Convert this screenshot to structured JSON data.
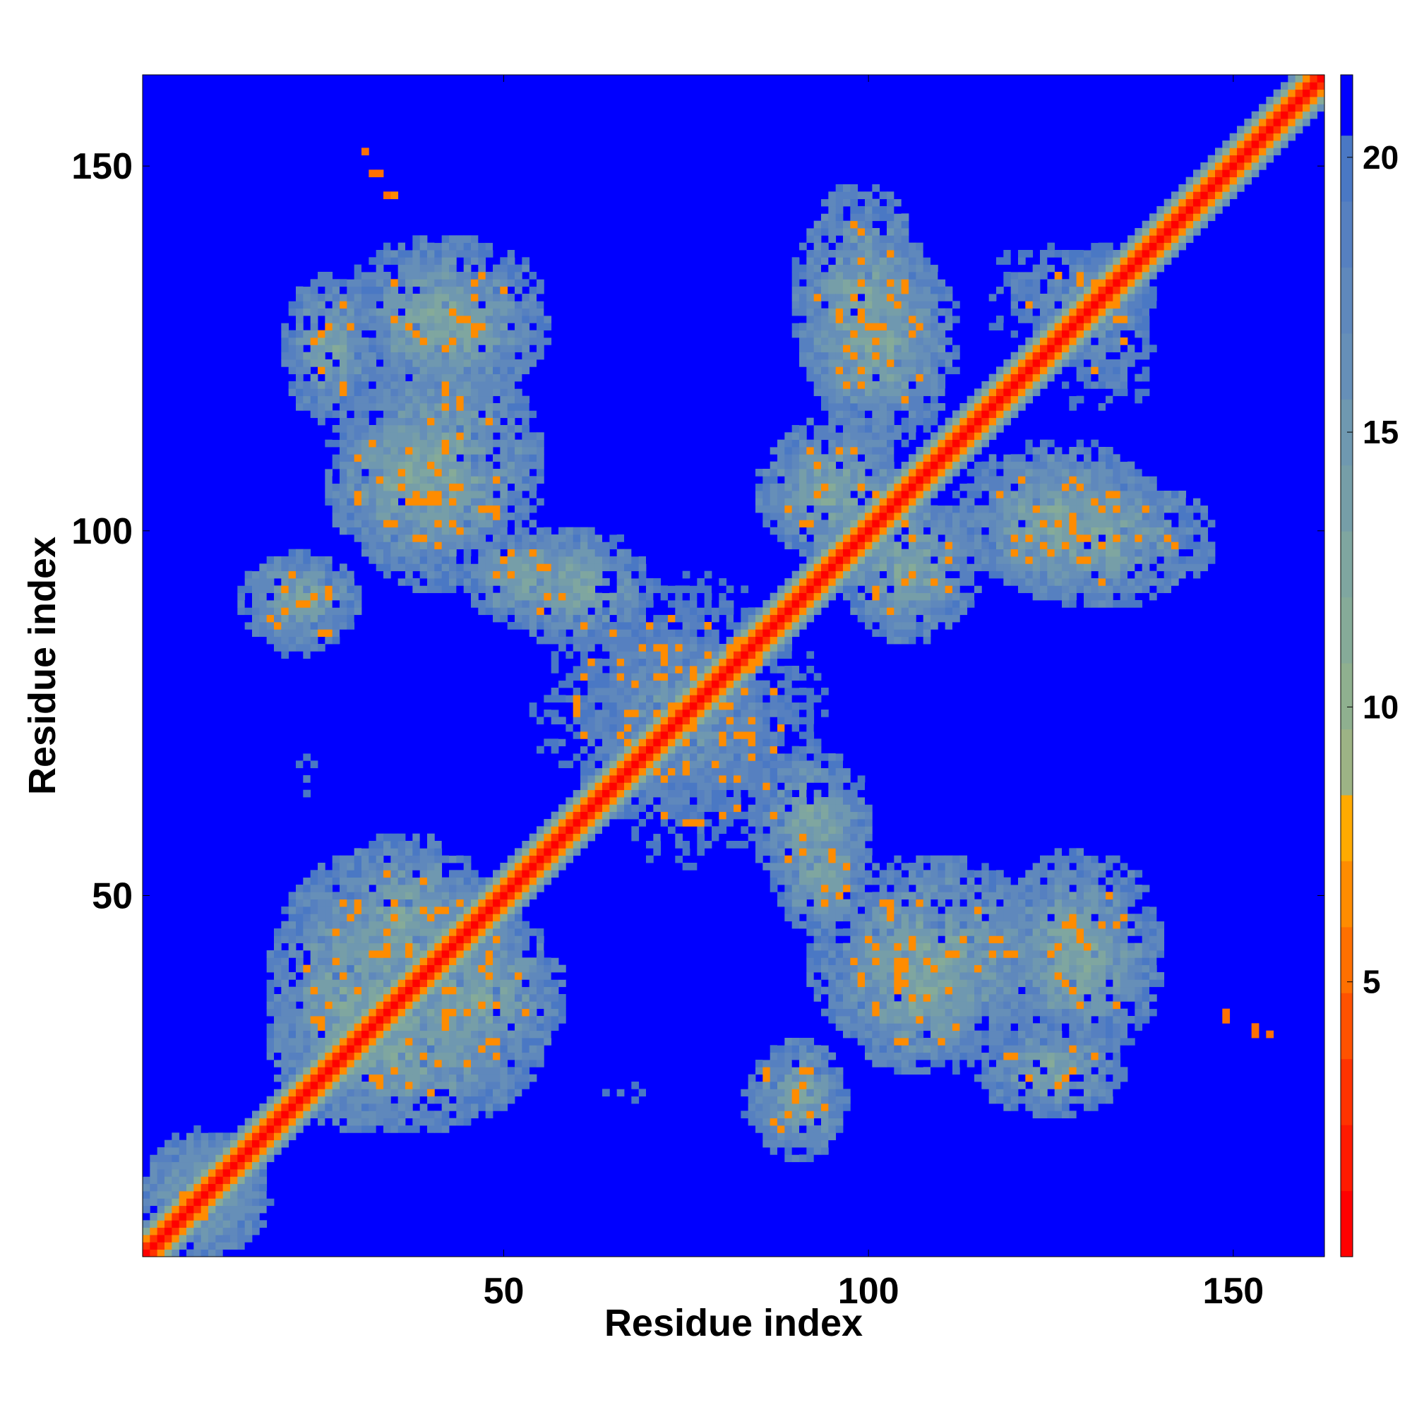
{
  "chart_data": {
    "type": "heatmap",
    "title": "",
    "xlabel": "Residue index",
    "ylabel": "Residue index",
    "xlim": [
      1,
      162
    ],
    "ylim": [
      1,
      162
    ],
    "x_ticks": [
      50,
      100,
      150
    ],
    "y_ticks": [
      50,
      100,
      150
    ],
    "x_tick_labels": [
      "50",
      "100",
      "150"
    ],
    "y_tick_labels": [
      "50",
      "100",
      "150"
    ],
    "colorbar": {
      "range": [
        0,
        21.5
      ],
      "ticks": [
        5,
        10,
        15,
        20
      ],
      "tick_labels": [
        "5",
        "10",
        "15",
        "20"
      ],
      "levels": [
        {
          "max": 1.2,
          "color": "#ff0000"
        },
        {
          "max": 2.4,
          "color": "#ff1a00"
        },
        {
          "max": 3.6,
          "color": "#ff3300"
        },
        {
          "max": 4.8,
          "color": "#ff5200"
        },
        {
          "max": 6.0,
          "color": "#ff7000"
        },
        {
          "max": 7.2,
          "color": "#ff8c00"
        },
        {
          "max": 8.4,
          "color": "#ffaa00"
        },
        {
          "max": 9.6,
          "color": "#9db385"
        },
        {
          "max": 10.8,
          "color": "#8fb08f"
        },
        {
          "max": 12.0,
          "color": "#86ab98"
        },
        {
          "max": 13.2,
          "color": "#7fa6a0"
        },
        {
          "max": 14.4,
          "color": "#769ea8"
        },
        {
          "max": 15.6,
          "color": "#6f98b0"
        },
        {
          "max": 16.8,
          "color": "#668fb8"
        },
        {
          "max": 18.0,
          "color": "#5f88bc"
        },
        {
          "max": 19.2,
          "color": "#5680c0"
        },
        {
          "max": 20.4,
          "color": "#4a78c4"
        },
        {
          "max": 21.5,
          "color": "#0000ff"
        }
      ]
    },
    "background_value": 21.5,
    "diagonal_band_half_width": 4,
    "contact_regions": [
      {
        "x": [
          20,
          32
        ],
        "y": [
          115,
          135
        ],
        "level": "high"
      },
      {
        "x": [
          37,
          52
        ],
        "y": [
          120,
          135
        ],
        "level": "high"
      },
      {
        "x": [
          26,
          48
        ],
        "y": [
          95,
          120
        ],
        "level": "high"
      },
      {
        "x": [
          14,
          30
        ],
        "y": [
          84,
          97
        ],
        "level": "high"
      },
      {
        "x": [
          45,
          62
        ],
        "y": [
          87,
          100
        ],
        "level": "high"
      },
      {
        "x": [
          54,
          92
        ],
        "y": [
          58,
          94
        ],
        "level": "medium"
      },
      {
        "x": [
          90,
          108
        ],
        "y": [
          115,
          147
        ],
        "level": "high"
      },
      {
        "x": [
          85,
          105
        ],
        "y": [
          96,
          115
        ],
        "level": "high"
      },
      {
        "x": [
          112,
          140
        ],
        "y": [
          92,
          112
        ],
        "level": "high"
      },
      {
        "x": [
          125,
          140
        ],
        "y": [
          115,
          140
        ],
        "level": "medium"
      },
      {
        "x": [
          1,
          18
        ],
        "y": [
          1,
          16
        ],
        "level": "high"
      },
      {
        "x": [
          18,
          42
        ],
        "y": [
          18,
          55
        ],
        "level": "high"
      },
      {
        "x": [
          35,
          58
        ],
        "y": [
          25,
          48
        ],
        "level": "high"
      },
      {
        "x": [
          84,
          100
        ],
        "y": [
          51,
          70
        ],
        "level": "high"
      },
      {
        "x": [
          92,
          125
        ],
        "y": [
          28,
          55
        ],
        "level": "high"
      },
      {
        "x": [
          118,
          140
        ],
        "y": [
          28,
          56
        ],
        "level": "high"
      },
      {
        "x": [
          82,
          95
        ],
        "y": [
          14,
          30
        ],
        "level": "medium"
      },
      {
        "x": [
          60,
          78
        ],
        "y": [
          20,
          26
        ],
        "level": "low"
      }
    ],
    "isolated_contacts": [
      {
        "x": 31,
        "y": 152,
        "value": 6
      },
      {
        "x": 32,
        "y": 149,
        "value": 6
      },
      {
        "x": 33,
        "y": 149,
        "value": 6
      },
      {
        "x": 34,
        "y": 146,
        "value": 6
      },
      {
        "x": 35,
        "y": 146,
        "value": 7
      },
      {
        "x": 149,
        "y": 34,
        "value": 6
      },
      {
        "x": 149,
        "y": 33,
        "value": 6
      },
      {
        "x": 153,
        "y": 31,
        "value": 6
      },
      {
        "x": 153,
        "y": 32,
        "value": 6
      },
      {
        "x": 155,
        "y": 31,
        "value": 6
      }
    ]
  }
}
